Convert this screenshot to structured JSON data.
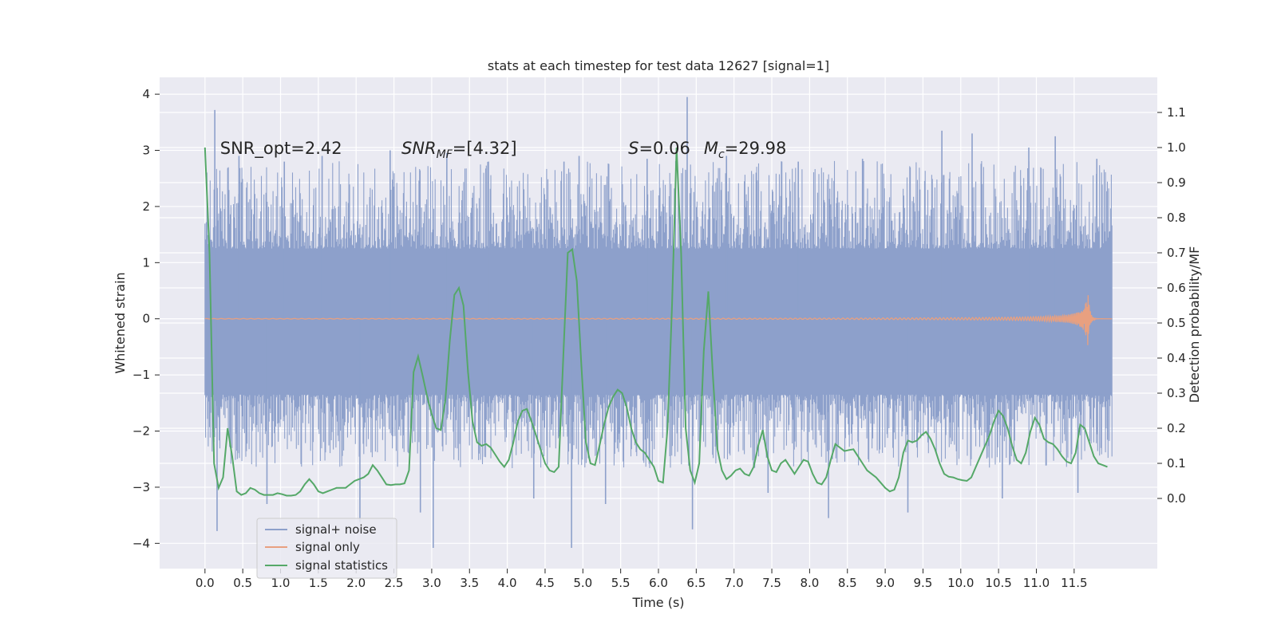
{
  "chart_data": {
    "type": "line",
    "title": "stats at each timestep for test data 12627 [signal=1]",
    "xlabel": "Time (s)",
    "ylabel_left": "Whitened strain",
    "ylabel_right": "Detection probability/MF",
    "xlim": [
      -0.6,
      12.6
    ],
    "ylim_left": [
      -4.45,
      4.3
    ],
    "ylim_right": [
      -0.2,
      1.2
    ],
    "grid": true,
    "legend_position": "lower-left",
    "x_ticks": [
      0,
      0.5,
      1,
      1.5,
      2,
      2.5,
      3,
      3.5,
      4,
      4.5,
      5,
      5.5,
      6,
      6.5,
      7,
      7.5,
      8,
      8.5,
      9,
      9.5,
      10,
      10.5,
      11,
      11.5
    ],
    "x_tick_labels": [
      "0.0",
      "0.5",
      "1.0",
      "1.5",
      "2.0",
      "2.5",
      "3.0",
      "3.5",
      "4.0",
      "4.5",
      "5.0",
      "5.5",
      "6.0",
      "6.5",
      "7.0",
      "7.5",
      "8.0",
      "8.5",
      "9.0",
      "9.5",
      "10.0",
      "10.5",
      "11.0",
      "11.5"
    ],
    "y_left_ticks": [
      -4,
      -3,
      -2,
      -1,
      0,
      1,
      2,
      3,
      4
    ],
    "y_left_tick_labels": [
      "−4",
      "−3",
      "−2",
      "−1",
      "0",
      "1",
      "2",
      "3",
      "4"
    ],
    "y_right_ticks": [
      0,
      0.1,
      0.2,
      0.3,
      0.4,
      0.5,
      0.6,
      0.7,
      0.8,
      0.9,
      1.0,
      1.1
    ],
    "y_right_tick_labels": [
      "0.0",
      "0.1",
      "0.2",
      "0.3",
      "0.4",
      "0.5",
      "0.6",
      "0.7",
      "0.8",
      "0.9",
      "1.0",
      "1.1"
    ],
    "annotations": [
      {
        "x": 0.2,
        "y": 3.05,
        "text": "SNR_opt=2.42",
        "italic": false
      },
      {
        "x": 2.6,
        "y": 3.05,
        "text": "SNR_MF=[4.32]",
        "italic": true
      },
      {
        "x": 5.6,
        "y": 3.05,
        "text": "S=0.06",
        "italic": true
      },
      {
        "x": 6.6,
        "y": 3.05,
        "text": "M_c=29.98",
        "italic": true
      }
    ],
    "series": [
      {
        "name": "signal+ noise",
        "axis": "left",
        "color": "#8da0cb",
        "x_range": [
          0,
          12.0
        ],
        "envelope_core": [
          -1.35,
          1.25
        ],
        "envelope_typical": [
          -2.4,
          2.5
        ],
        "spikes": [
          {
            "x": 0.13,
            "y": 3.72
          },
          {
            "x": 0.16,
            "y": -3.78
          },
          {
            "x": 0.45,
            "y": 2.9
          },
          {
            "x": 0.82,
            "y": -3.3
          },
          {
            "x": 1.05,
            "y": 2.8
          },
          {
            "x": 1.55,
            "y": 2.9
          },
          {
            "x": 2.05,
            "y": -3.62
          },
          {
            "x": 2.45,
            "y": 3.0
          },
          {
            "x": 2.85,
            "y": -3.45
          },
          {
            "x": 3.02,
            "y": -4.08
          },
          {
            "x": 3.2,
            "y": 2.95
          },
          {
            "x": 3.75,
            "y": 2.8
          },
          {
            "x": 4.35,
            "y": -3.2
          },
          {
            "x": 4.75,
            "y": 2.8
          },
          {
            "x": 4.85,
            "y": -4.08
          },
          {
            "x": 4.95,
            "y": 2.9
          },
          {
            "x": 5.3,
            "y": -3.3
          },
          {
            "x": 5.85,
            "y": 2.85
          },
          {
            "x": 6.38,
            "y": 3.95
          },
          {
            "x": 6.45,
            "y": -3.75
          },
          {
            "x": 6.9,
            "y": 2.9
          },
          {
            "x": 7.45,
            "y": -3.1
          },
          {
            "x": 7.85,
            "y": 2.8
          },
          {
            "x": 8.25,
            "y": -3.55
          },
          {
            "x": 8.7,
            "y": 2.85
          },
          {
            "x": 9.3,
            "y": -3.45
          },
          {
            "x": 9.75,
            "y": 3.35
          },
          {
            "x": 10.15,
            "y": 3.3
          },
          {
            "x": 10.55,
            "y": -3.2
          },
          {
            "x": 10.9,
            "y": 3.05
          },
          {
            "x": 11.25,
            "y": 3.25
          },
          {
            "x": 11.55,
            "y": -3.1
          },
          {
            "x": 11.8,
            "y": 2.85
          }
        ]
      },
      {
        "name": "signal only",
        "axis": "left",
        "color": "#e8a080",
        "x_range": [
          0,
          12.0
        ],
        "chirp_peak_time": 11.68,
        "chirp_peak_amplitude": 0.55
      },
      {
        "name": "signal statistics",
        "axis": "right",
        "color": "#55a868",
        "x": [
          0,
          0.06,
          0.12,
          0.18,
          0.24,
          0.3,
          0.36,
          0.42,
          0.48,
          0.54,
          0.6,
          0.66,
          0.72,
          0.78,
          0.84,
          0.9,
          0.96,
          1.02,
          1.08,
          1.14,
          1.2,
          1.26,
          1.32,
          1.38,
          1.44,
          1.5,
          1.56,
          1.62,
          1.68,
          1.74,
          1.8,
          1.86,
          1.92,
          1.98,
          2.04,
          2.1,
          2.16,
          2.22,
          2.28,
          2.34,
          2.4,
          2.46,
          2.52,
          2.58,
          2.64,
          2.7,
          2.76,
          2.82,
          2.88,
          2.94,
          3.0,
          3.06,
          3.12,
          3.18,
          3.24,
          3.3,
          3.36,
          3.42,
          3.48,
          3.54,
          3.6,
          3.66,
          3.72,
          3.78,
          3.84,
          3.9,
          3.96,
          4.02,
          4.08,
          4.14,
          4.2,
          4.26,
          4.32,
          4.38,
          4.44,
          4.5,
          4.56,
          4.62,
          4.68,
          4.74,
          4.8,
          4.86,
          4.92,
          4.98,
          5.04,
          5.1,
          5.16,
          5.22,
          5.28,
          5.34,
          5.4,
          5.46,
          5.52,
          5.58,
          5.64,
          5.7,
          5.76,
          5.82,
          5.88,
          5.94,
          6.0,
          6.06,
          6.12,
          6.18,
          6.24,
          6.3,
          6.36,
          6.42,
          6.48,
          6.54,
          6.6,
          6.66,
          6.72,
          6.78,
          6.84,
          6.9,
          6.96,
          7.02,
          7.08,
          7.14,
          7.2,
          7.26,
          7.32,
          7.38,
          7.44,
          7.5,
          7.56,
          7.62,
          7.68,
          7.74,
          7.8,
          7.86,
          7.92,
          7.98,
          8.04,
          8.1,
          8.16,
          8.22,
          8.28,
          8.34,
          8.4,
          8.46,
          8.52,
          8.58,
          8.64,
          8.7,
          8.76,
          8.82,
          8.88,
          8.94,
          9.0,
          9.06,
          9.12,
          9.18,
          9.24,
          9.3,
          9.36,
          9.42,
          9.48,
          9.54,
          9.6,
          9.66,
          9.72,
          9.78,
          9.84,
          9.9,
          9.96,
          10.02,
          10.08,
          10.14,
          10.2,
          10.26,
          10.32,
          10.38,
          10.44,
          10.5,
          10.56,
          10.62,
          10.68,
          10.74,
          10.8,
          10.86,
          10.92,
          10.98,
          11.04,
          11.1,
          11.16,
          11.22,
          11.28,
          11.34,
          11.4,
          11.46,
          11.52,
          11.58,
          11.64,
          11.7,
          11.76,
          11.82,
          11.88,
          11.94
        ],
        "values": [
          1.0,
          0.7,
          0.1,
          0.03,
          0.06,
          0.2,
          0.12,
          0.02,
          0.01,
          0.015,
          0.03,
          0.025,
          0.015,
          0.01,
          0.01,
          0.01,
          0.015,
          0.012,
          0.008,
          0.008,
          0.01,
          0.02,
          0.04,
          0.055,
          0.04,
          0.02,
          0.015,
          0.02,
          0.025,
          0.03,
          0.03,
          0.03,
          0.04,
          0.05,
          0.055,
          0.06,
          0.07,
          0.095,
          0.08,
          0.06,
          0.04,
          0.038,
          0.04,
          0.04,
          0.043,
          0.08,
          0.36,
          0.405,
          0.35,
          0.29,
          0.24,
          0.2,
          0.195,
          0.28,
          0.45,
          0.58,
          0.6,
          0.55,
          0.36,
          0.22,
          0.16,
          0.15,
          0.155,
          0.145,
          0.125,
          0.105,
          0.09,
          0.11,
          0.16,
          0.22,
          0.25,
          0.255,
          0.22,
          0.18,
          0.14,
          0.1,
          0.08,
          0.075,
          0.09,
          0.4,
          0.7,
          0.71,
          0.62,
          0.38,
          0.16,
          0.1,
          0.095,
          0.15,
          0.21,
          0.26,
          0.29,
          0.31,
          0.3,
          0.26,
          0.2,
          0.16,
          0.14,
          0.13,
          0.11,
          0.09,
          0.05,
          0.045,
          0.2,
          0.55,
          1.0,
          0.7,
          0.2,
          0.08,
          0.045,
          0.1,
          0.42,
          0.59,
          0.35,
          0.14,
          0.08,
          0.055,
          0.065,
          0.08,
          0.085,
          0.07,
          0.065,
          0.09,
          0.15,
          0.195,
          0.12,
          0.08,
          0.075,
          0.1,
          0.11,
          0.09,
          0.07,
          0.09,
          0.11,
          0.105,
          0.07,
          0.045,
          0.04,
          0.06,
          0.11,
          0.155,
          0.145,
          0.135,
          0.138,
          0.14,
          0.12,
          0.1,
          0.08,
          0.07,
          0.06,
          0.045,
          0.03,
          0.02,
          0.025,
          0.06,
          0.13,
          0.165,
          0.16,
          0.165,
          0.18,
          0.19,
          0.17,
          0.14,
          0.1,
          0.07,
          0.062,
          0.06,
          0.055,
          0.052,
          0.05,
          0.06,
          0.09,
          0.12,
          0.15,
          0.18,
          0.22,
          0.25,
          0.235,
          0.2,
          0.15,
          0.11,
          0.1,
          0.13,
          0.19,
          0.23,
          0.21,
          0.17,
          0.16,
          0.155,
          0.14,
          0.12,
          0.105,
          0.1,
          0.13,
          0.21,
          0.2,
          0.16,
          0.12,
          0.1,
          0.095,
          0.09
        ]
      }
    ]
  }
}
